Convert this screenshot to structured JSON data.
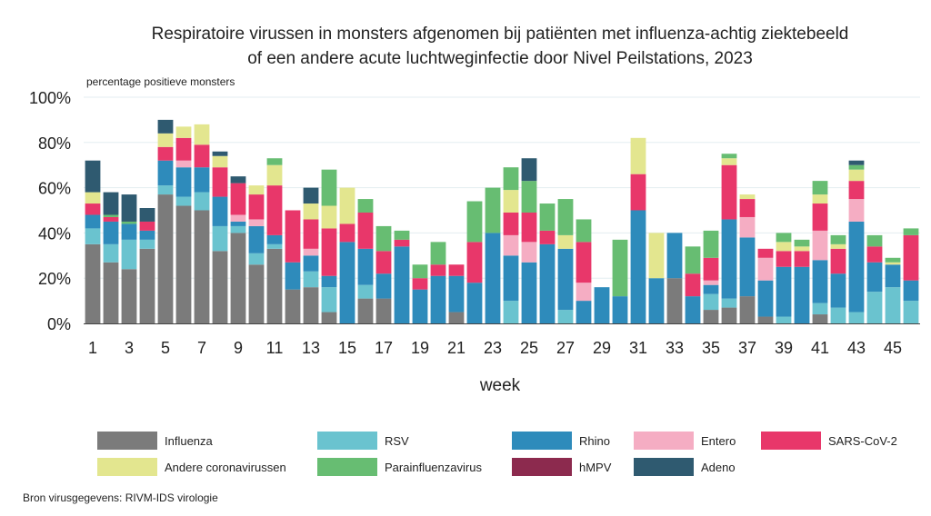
{
  "chart_data": {
    "type": "stacked-bar",
    "title_line1": "Respiratoire virussen in monsters afgenomen bij patiënten met influenza-achtig ziektebeeld",
    "title_line2": "of een andere acute luchtweginfectie door Nivel Peilstations, 2023",
    "ylabel": "percentage positieve monsters",
    "xlabel": "week",
    "ylim": [
      0,
      100
    ],
    "yticks": [
      "0%",
      "20%",
      "40%",
      "60%",
      "80%",
      "100%"
    ],
    "xtick_labels": [
      "1",
      "3",
      "5",
      "7",
      "9",
      "11",
      "13",
      "15",
      "17",
      "19",
      "21",
      "23",
      "25",
      "27",
      "29",
      "31",
      "33",
      "35",
      "37",
      "39",
      "41",
      "43",
      "45"
    ],
    "categories": [
      1,
      2,
      3,
      4,
      5,
      6,
      7,
      8,
      9,
      10,
      11,
      12,
      13,
      14,
      15,
      16,
      17,
      18,
      19,
      20,
      21,
      22,
      23,
      24,
      25,
      26,
      27,
      28,
      29,
      30,
      31,
      32,
      33,
      34,
      35,
      36,
      37,
      38,
      39,
      40,
      41,
      42,
      43,
      44,
      45,
      46
    ],
    "series": [
      {
        "name": "Influenza",
        "color": "#7b7b7b",
        "values": [
          35,
          27,
          24,
          33,
          57,
          52,
          50,
          32,
          40,
          26,
          33,
          15,
          16,
          5,
          0,
          11,
          11,
          0,
          0,
          0,
          5,
          0,
          0,
          0,
          0,
          0,
          0,
          0,
          0,
          0,
          0,
          0,
          20,
          0,
          6,
          7,
          12,
          3,
          0,
          0,
          4,
          0,
          0,
          0,
          0,
          0
        ]
      },
      {
        "name": "RSV",
        "color": "#6ac3cf",
        "values": [
          7,
          8,
          13,
          4,
          4,
          4,
          8,
          11,
          3,
          5,
          2,
          0,
          7,
          11,
          0,
          6,
          0,
          0,
          0,
          0,
          0,
          0,
          0,
          10,
          0,
          0,
          6,
          0,
          0,
          0,
          0,
          0,
          0,
          0,
          7,
          4,
          0,
          0,
          3,
          0,
          5,
          7,
          5,
          14,
          16,
          10
        ]
      },
      {
        "name": "Rhino",
        "color": "#2e8bbb",
        "values": [
          6,
          10,
          7,
          4,
          11,
          13,
          11,
          13,
          2,
          12,
          4,
          12,
          7,
          5,
          36,
          16,
          11,
          34,
          15,
          21,
          16,
          18,
          40,
          20,
          27,
          35,
          27,
          10,
          16,
          12,
          50,
          20,
          20,
          12,
          4,
          35,
          26,
          16,
          22,
          25,
          19,
          15,
          40,
          13,
          10,
          9
        ]
      },
      {
        "name": "Entero",
        "color": "#f5adc3",
        "values": [
          0,
          0,
          0,
          0,
          0,
          3,
          0,
          0,
          3,
          3,
          0,
          0,
          3,
          0,
          0,
          0,
          0,
          0,
          0,
          0,
          0,
          0,
          0,
          9,
          9,
          0,
          0,
          8,
          0,
          0,
          0,
          0,
          0,
          0,
          2,
          0,
          9,
          10,
          0,
          0,
          13,
          0,
          10,
          0,
          0,
          0
        ]
      },
      {
        "name": "SARS-CoV-2",
        "color": "#e8376a",
        "values": [
          5,
          2,
          0,
          4,
          6,
          10,
          10,
          13,
          14,
          11,
          22,
          23,
          13,
          21,
          8,
          16,
          10,
          3,
          5,
          5,
          5,
          18,
          0,
          10,
          13,
          6,
          0,
          18,
          0,
          0,
          16,
          0,
          0,
          10,
          10,
          24,
          8,
          4,
          7,
          7,
          12,
          11,
          8,
          7,
          0,
          20
        ]
      },
      {
        "name": "Andere coronavirussen",
        "color": "#e3e68f",
        "values": [
          5,
          0,
          0,
          0,
          6,
          5,
          9,
          5,
          0,
          4,
          9,
          0,
          7,
          10,
          16,
          0,
          0,
          0,
          0,
          0,
          0,
          0,
          0,
          10,
          0,
          0,
          6,
          0,
          0,
          0,
          16,
          20,
          0,
          0,
          0,
          3,
          2,
          0,
          4,
          2,
          4,
          2,
          5,
          0,
          1,
          0
        ]
      },
      {
        "name": "Parainfluenzavirus",
        "color": "#67bd72",
        "values": [
          0,
          1,
          1,
          0,
          0,
          0,
          0,
          0,
          0,
          0,
          3,
          0,
          0,
          16,
          0,
          6,
          11,
          4,
          6,
          10,
          0,
          18,
          20,
          10,
          14,
          12,
          16,
          10,
          0,
          25,
          0,
          0,
          0,
          12,
          12,
          2,
          0,
          0,
          4,
          3,
          6,
          4,
          2,
          5,
          2,
          3
        ]
      },
      {
        "name": "hMPV",
        "color": "#8c2a4e",
        "values": [
          0,
          0,
          0,
          0,
          0,
          0,
          0,
          0,
          0,
          0,
          0,
          0,
          0,
          0,
          0,
          0,
          0,
          0,
          0,
          0,
          0,
          0,
          0,
          0,
          0,
          0,
          0,
          0,
          0,
          0,
          0,
          0,
          0,
          0,
          0,
          0,
          0,
          0,
          0,
          0,
          0,
          0,
          0,
          0,
          0,
          0
        ]
      },
      {
        "name": "Adeno",
        "color": "#2f5a70",
        "values": [
          14,
          10,
          12,
          6,
          6,
          0,
          0,
          2,
          3,
          0,
          0,
          0,
          7,
          0,
          0,
          0,
          0,
          0,
          0,
          0,
          0,
          0,
          0,
          0,
          10,
          0,
          0,
          0,
          0,
          0,
          0,
          0,
          0,
          0,
          0,
          0,
          0,
          0,
          0,
          0,
          0,
          0,
          2,
          0,
          0,
          0
        ]
      }
    ],
    "grid": true,
    "legend_position": "bottom"
  },
  "source_note": "Bron virusgegevens: RIVM-IDS virologie"
}
